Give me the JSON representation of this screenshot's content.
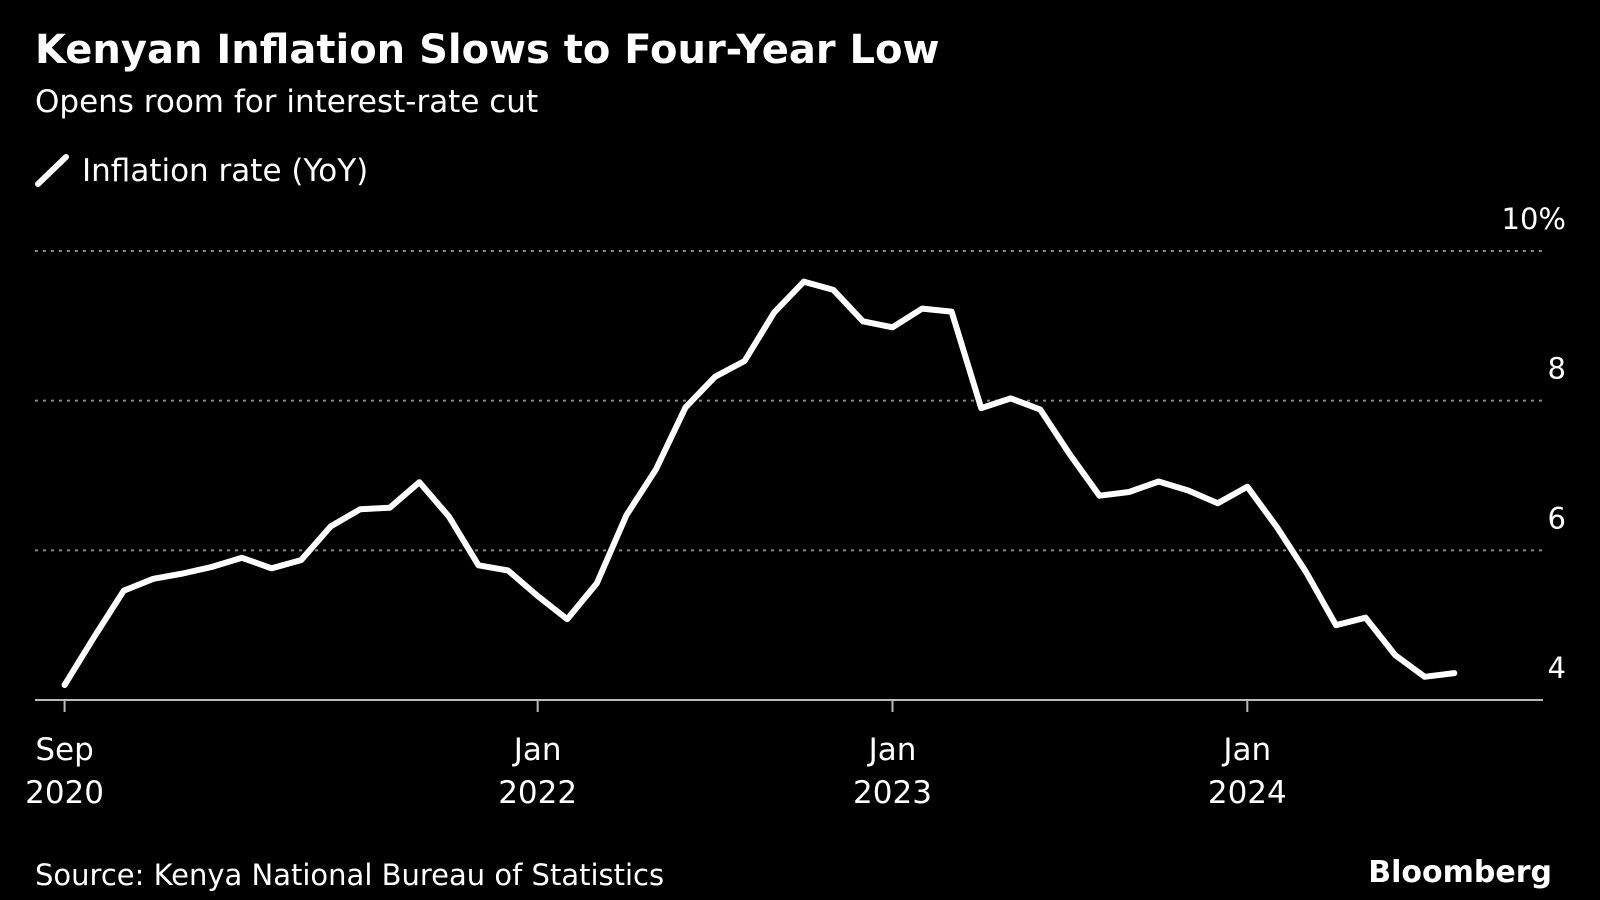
{
  "chart_data": {
    "type": "line",
    "title": "Kenyan Inflation Slows to Four-Year Low",
    "subtitle": "Opens room for interest-rate cut",
    "source": "Source: Kenya National Bureau of Statistics",
    "brand": "Bloomberg",
    "x": [
      "2020-09",
      "2020-10",
      "2020-11",
      "2020-12",
      "2021-01",
      "2021-02",
      "2021-03",
      "2021-04",
      "2021-05",
      "2021-06",
      "2021-07",
      "2021-08",
      "2021-09",
      "2021-10",
      "2021-11",
      "2021-12",
      "2022-01",
      "2022-02",
      "2022-03",
      "2022-04",
      "2022-05",
      "2022-06",
      "2022-07",
      "2022-08",
      "2022-09",
      "2022-10",
      "2022-11",
      "2022-12",
      "2023-01",
      "2023-02",
      "2023-03",
      "2023-04",
      "2023-05",
      "2023-06",
      "2023-07",
      "2023-08",
      "2023-09",
      "2023-10",
      "2023-11",
      "2023-12",
      "2024-01",
      "2024-02",
      "2024-03",
      "2024-04",
      "2024-05",
      "2024-06",
      "2024-07",
      "2024-08"
    ],
    "series": [
      {
        "name": "Inflation rate (YoY)",
        "color": "#ffffff",
        "values": [
          4.2,
          4.84,
          5.46,
          5.62,
          5.69,
          5.78,
          5.9,
          5.76,
          5.87,
          6.32,
          6.55,
          6.57,
          6.91,
          6.45,
          5.8,
          5.73,
          5.39,
          5.08,
          5.56,
          6.47,
          7.08,
          7.91,
          8.32,
          8.53,
          9.18,
          9.59,
          9.48,
          9.06,
          8.98,
          9.23,
          9.19,
          7.9,
          8.03,
          7.88,
          7.28,
          6.73,
          6.78,
          6.92,
          6.8,
          6.63,
          6.85,
          6.31,
          5.7,
          5.0,
          5.1,
          4.6,
          4.31,
          4.36
        ]
      }
    ],
    "xlim": [
      "2020-08",
      "2024-11"
    ],
    "xticks": [
      {
        "value": "2020-09",
        "label": "Sep 2020"
      },
      {
        "value": "2022-01",
        "label": "Jan 2022"
      },
      {
        "value": "2023-01",
        "label": "Jan 2023"
      },
      {
        "value": "2024-01",
        "label": "Jan 2024"
      }
    ],
    "ylim": [
      4,
      10
    ],
    "yticks": [
      4,
      6,
      8,
      {
        "value": 10,
        "label": "10%"
      }
    ],
    "grid": true
  }
}
